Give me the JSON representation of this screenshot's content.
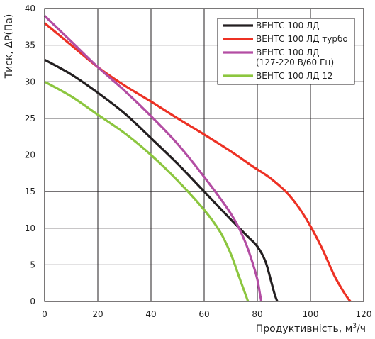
{
  "chart_data": {
    "type": "line",
    "xlabel_main": "Продуктивність, м",
    "xlabel_sup": "3",
    "xlabel_tail": "/ч",
    "ylabel": "Тиск, ΔP(Па)",
    "xlim": [
      0,
      120
    ],
    "ylim": [
      0,
      40
    ],
    "xticks": [
      "0",
      "20",
      "40",
      "60",
      "80",
      "100",
      "120"
    ],
    "yticks": [
      "0",
      "5",
      "10",
      "15",
      "20",
      "25",
      "30",
      "35",
      "40"
    ],
    "grid": true,
    "legend_position": "top-right",
    "series": [
      {
        "name": "ВЕНТС 100 ЛД",
        "legend_lines": [
          "ВЕНТС 100 ЛД"
        ],
        "color": "#231f20",
        "x": [
          0,
          10,
          20,
          30,
          40,
          50,
          60,
          70,
          76,
          80,
          83,
          85,
          86.5,
          87.5
        ],
        "y": [
          33,
          31,
          28.5,
          25.7,
          22.3,
          18.8,
          15,
          11.2,
          9,
          7.5,
          5.5,
          3,
          1,
          0
        ]
      },
      {
        "name": "ВЕНТС 100 ЛД турбо",
        "legend_lines": [
          "ВЕНТС 100 ЛД турбо"
        ],
        "color": "#ed3124",
        "x": [
          0,
          10,
          20,
          30,
          40,
          50,
          60,
          70,
          78,
          85,
          92,
          98,
          104,
          109,
          113,
          115
        ],
        "y": [
          38,
          35,
          32,
          29.5,
          27.3,
          25,
          22.8,
          20.5,
          18.5,
          16.8,
          14.5,
          11.5,
          7.5,
          3.5,
          1,
          0
        ]
      },
      {
        "name": "ВЕНТС 100 ЛД (127-220 В/60 Гц)",
        "legend_lines": [
          "ВЕНТС 100 ЛД",
          "(127-220 В/60 Гц)"
        ],
        "color": "#b34da3",
        "x": [
          0,
          10,
          20,
          30,
          40,
          50,
          60,
          70,
          75,
          78,
          80,
          81,
          81.5
        ],
        "y": [
          39,
          35.5,
          32,
          28.8,
          25.3,
          21.5,
          17,
          12,
          8.5,
          5.5,
          3,
          1,
          0
        ]
      },
      {
        "name": "ВЕНТС 100 ЛД 12",
        "legend_lines": [
          "ВЕНТС 100 ЛД 12"
        ],
        "color": "#8cc63f",
        "x": [
          0,
          10,
          20,
          30,
          40,
          50,
          60,
          66,
          70,
          73,
          75,
          76.5
        ],
        "y": [
          30,
          28,
          25.5,
          23,
          20,
          16.5,
          12.5,
          9.5,
          6.5,
          3.5,
          1.5,
          0
        ]
      }
    ]
  }
}
